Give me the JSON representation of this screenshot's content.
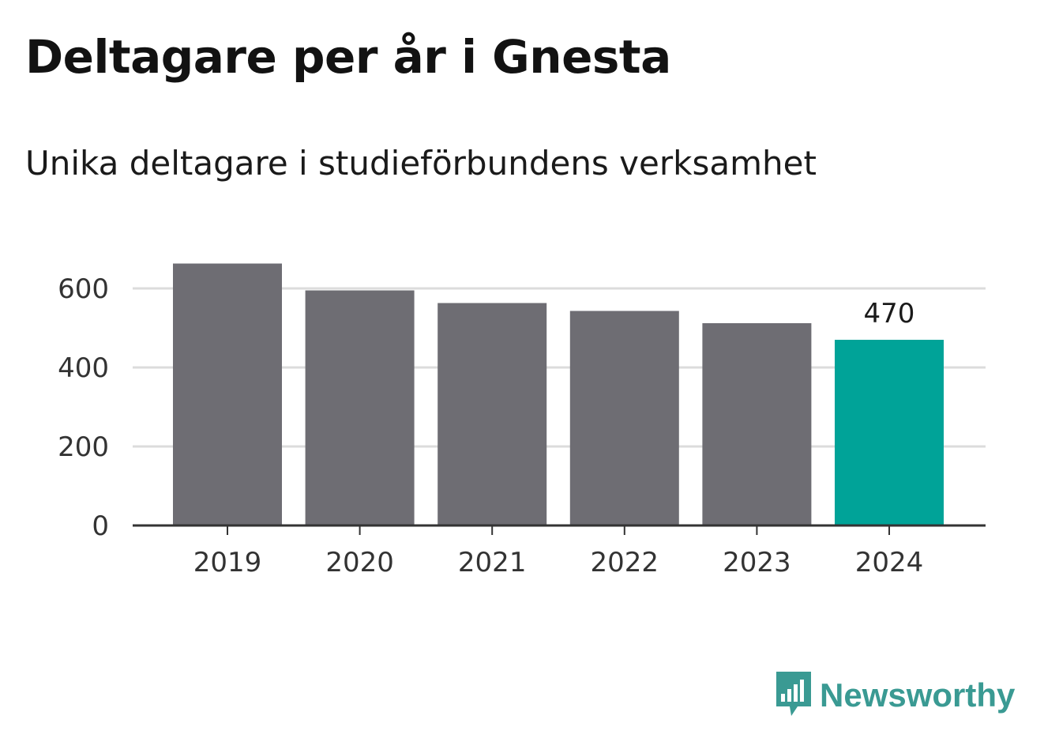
{
  "title": "Deltagare per år i Gnesta",
  "subtitle": "Unika deltagare i studieförbundens verksamhet",
  "brand": {
    "name": "Newsworthy",
    "color": "#3a9a93",
    "icon": "newsworthy-logo-icon"
  },
  "colors": {
    "bar": "#6e6d73",
    "highlight": "#00a398",
    "grid": "#dcdcdc",
    "axis": "#333333"
  },
  "chart_data": {
    "type": "bar",
    "categories": [
      "2019",
      "2020",
      "2021",
      "2022",
      "2023",
      "2024"
    ],
    "values": [
      663,
      595,
      563,
      543,
      512,
      470
    ],
    "highlight_index": 5,
    "data_labels": [
      {
        "index": 5,
        "text": "470"
      }
    ],
    "y_ticks": [
      "0",
      "200",
      "400",
      "600"
    ],
    "ylim": [
      0,
      680
    ],
    "grid": true,
    "xlabel": "",
    "ylabel": ""
  }
}
